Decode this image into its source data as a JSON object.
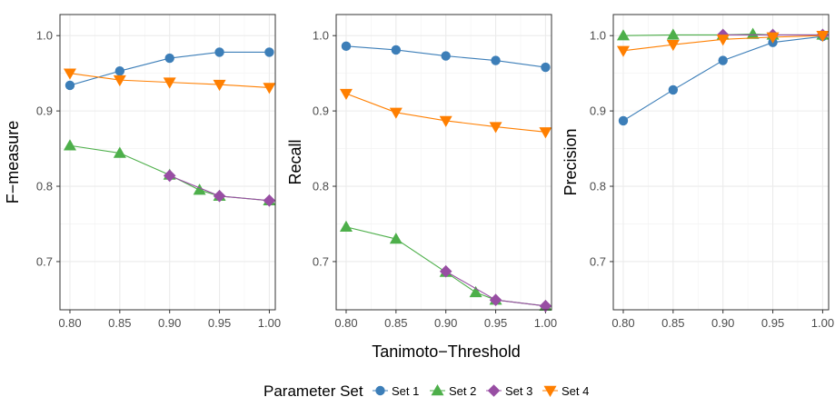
{
  "chart_data": {
    "type": "line",
    "facets": [
      {
        "ylabel": "F−measure",
        "series": [
          {
            "name": "Set 1",
            "x": [
              0.8,
              0.85,
              0.9,
              0.95,
              1.0
            ],
            "y": [
              0.934,
              0.953,
              0.97,
              0.978,
              0.978
            ]
          },
          {
            "name": "Set 2",
            "x": [
              0.8,
              0.85,
              0.9,
              0.93,
              0.95,
              1.0
            ],
            "y": [
              0.854,
              0.844,
              0.815,
              0.795,
              0.787,
              0.781
            ]
          },
          {
            "name": "Set 3",
            "x": [
              0.9,
              0.95,
              1.0
            ],
            "y": [
              0.814,
              0.787,
              0.781
            ]
          },
          {
            "name": "Set 4",
            "x": [
              0.8,
              0.85,
              0.9,
              0.95,
              1.0
            ],
            "y": [
              0.95,
              0.941,
              0.938,
              0.935,
              0.931
            ]
          }
        ]
      },
      {
        "ylabel": "Recall",
        "series": [
          {
            "name": "Set 1",
            "x": [
              0.8,
              0.85,
              0.9,
              0.95,
              1.0
            ],
            "y": [
              0.986,
              0.981,
              0.973,
              0.967,
              0.958
            ]
          },
          {
            "name": "Set 2",
            "x": [
              0.8,
              0.85,
              0.9,
              0.93,
              0.95,
              1.0
            ],
            "y": [
              0.746,
              0.73,
              0.686,
              0.659,
              0.649,
              0.641
            ]
          },
          {
            "name": "Set 3",
            "x": [
              0.9,
              0.95,
              1.0
            ],
            "y": [
              0.687,
              0.649,
              0.641
            ]
          },
          {
            "name": "Set 4",
            "x": [
              0.8,
              0.85,
              0.9,
              0.95,
              1.0
            ],
            "y": [
              0.923,
              0.898,
              0.887,
              0.879,
              0.872
            ]
          }
        ]
      },
      {
        "ylabel": "Precision",
        "series": [
          {
            "name": "Set 1",
            "x": [
              0.8,
              0.85,
              0.9,
              0.95,
              1.0
            ],
            "y": [
              0.887,
              0.928,
              0.967,
              0.991,
              0.999
            ]
          },
          {
            "name": "Set 2",
            "x": [
              0.8,
              0.85,
              0.9,
              0.93,
              0.95,
              1.0
            ],
            "y": [
              1.0,
              1.001,
              1.001,
              1.002,
              1.001,
              1.001
            ]
          },
          {
            "name": "Set 3",
            "x": [
              0.9,
              0.95,
              1.0
            ],
            "y": [
              1.001,
              1.001,
              1.001
            ]
          },
          {
            "name": "Set 4",
            "x": [
              0.8,
              0.85,
              0.9,
              0.95,
              1.0
            ],
            "y": [
              0.98,
              0.988,
              0.995,
              0.998,
              1.0
            ]
          }
        ]
      }
    ],
    "xlabel": "Tanimoto−Threshold",
    "x_ticks": [
      "0.80",
      "0.85",
      "0.90",
      "0.95",
      "1.00"
    ],
    "x_tick_values": [
      0.8,
      0.85,
      0.9,
      0.95,
      1.0
    ],
    "xlim": [
      0.79,
      1.006
    ],
    "y_ticks": [
      "0.7",
      "0.8",
      "0.9",
      "1.0"
    ],
    "y_tick_values": [
      0.7,
      0.8,
      0.9,
      1.0
    ],
    "ylim": [
      0.636,
      1.028
    ],
    "grid": true,
    "legend": {
      "title": "Parameter Set",
      "position": "bottom",
      "entries": [
        {
          "name": "Set 1",
          "color": "#3C7EB8",
          "marker": "circle"
        },
        {
          "name": "Set 2",
          "color": "#4DAF4A",
          "marker": "triangle-up"
        },
        {
          "name": "Set 3",
          "color": "#984EA3",
          "marker": "diamond"
        },
        {
          "name": "Set 4",
          "color": "#FF7F00",
          "marker": "triangle-down"
        }
      ]
    }
  }
}
